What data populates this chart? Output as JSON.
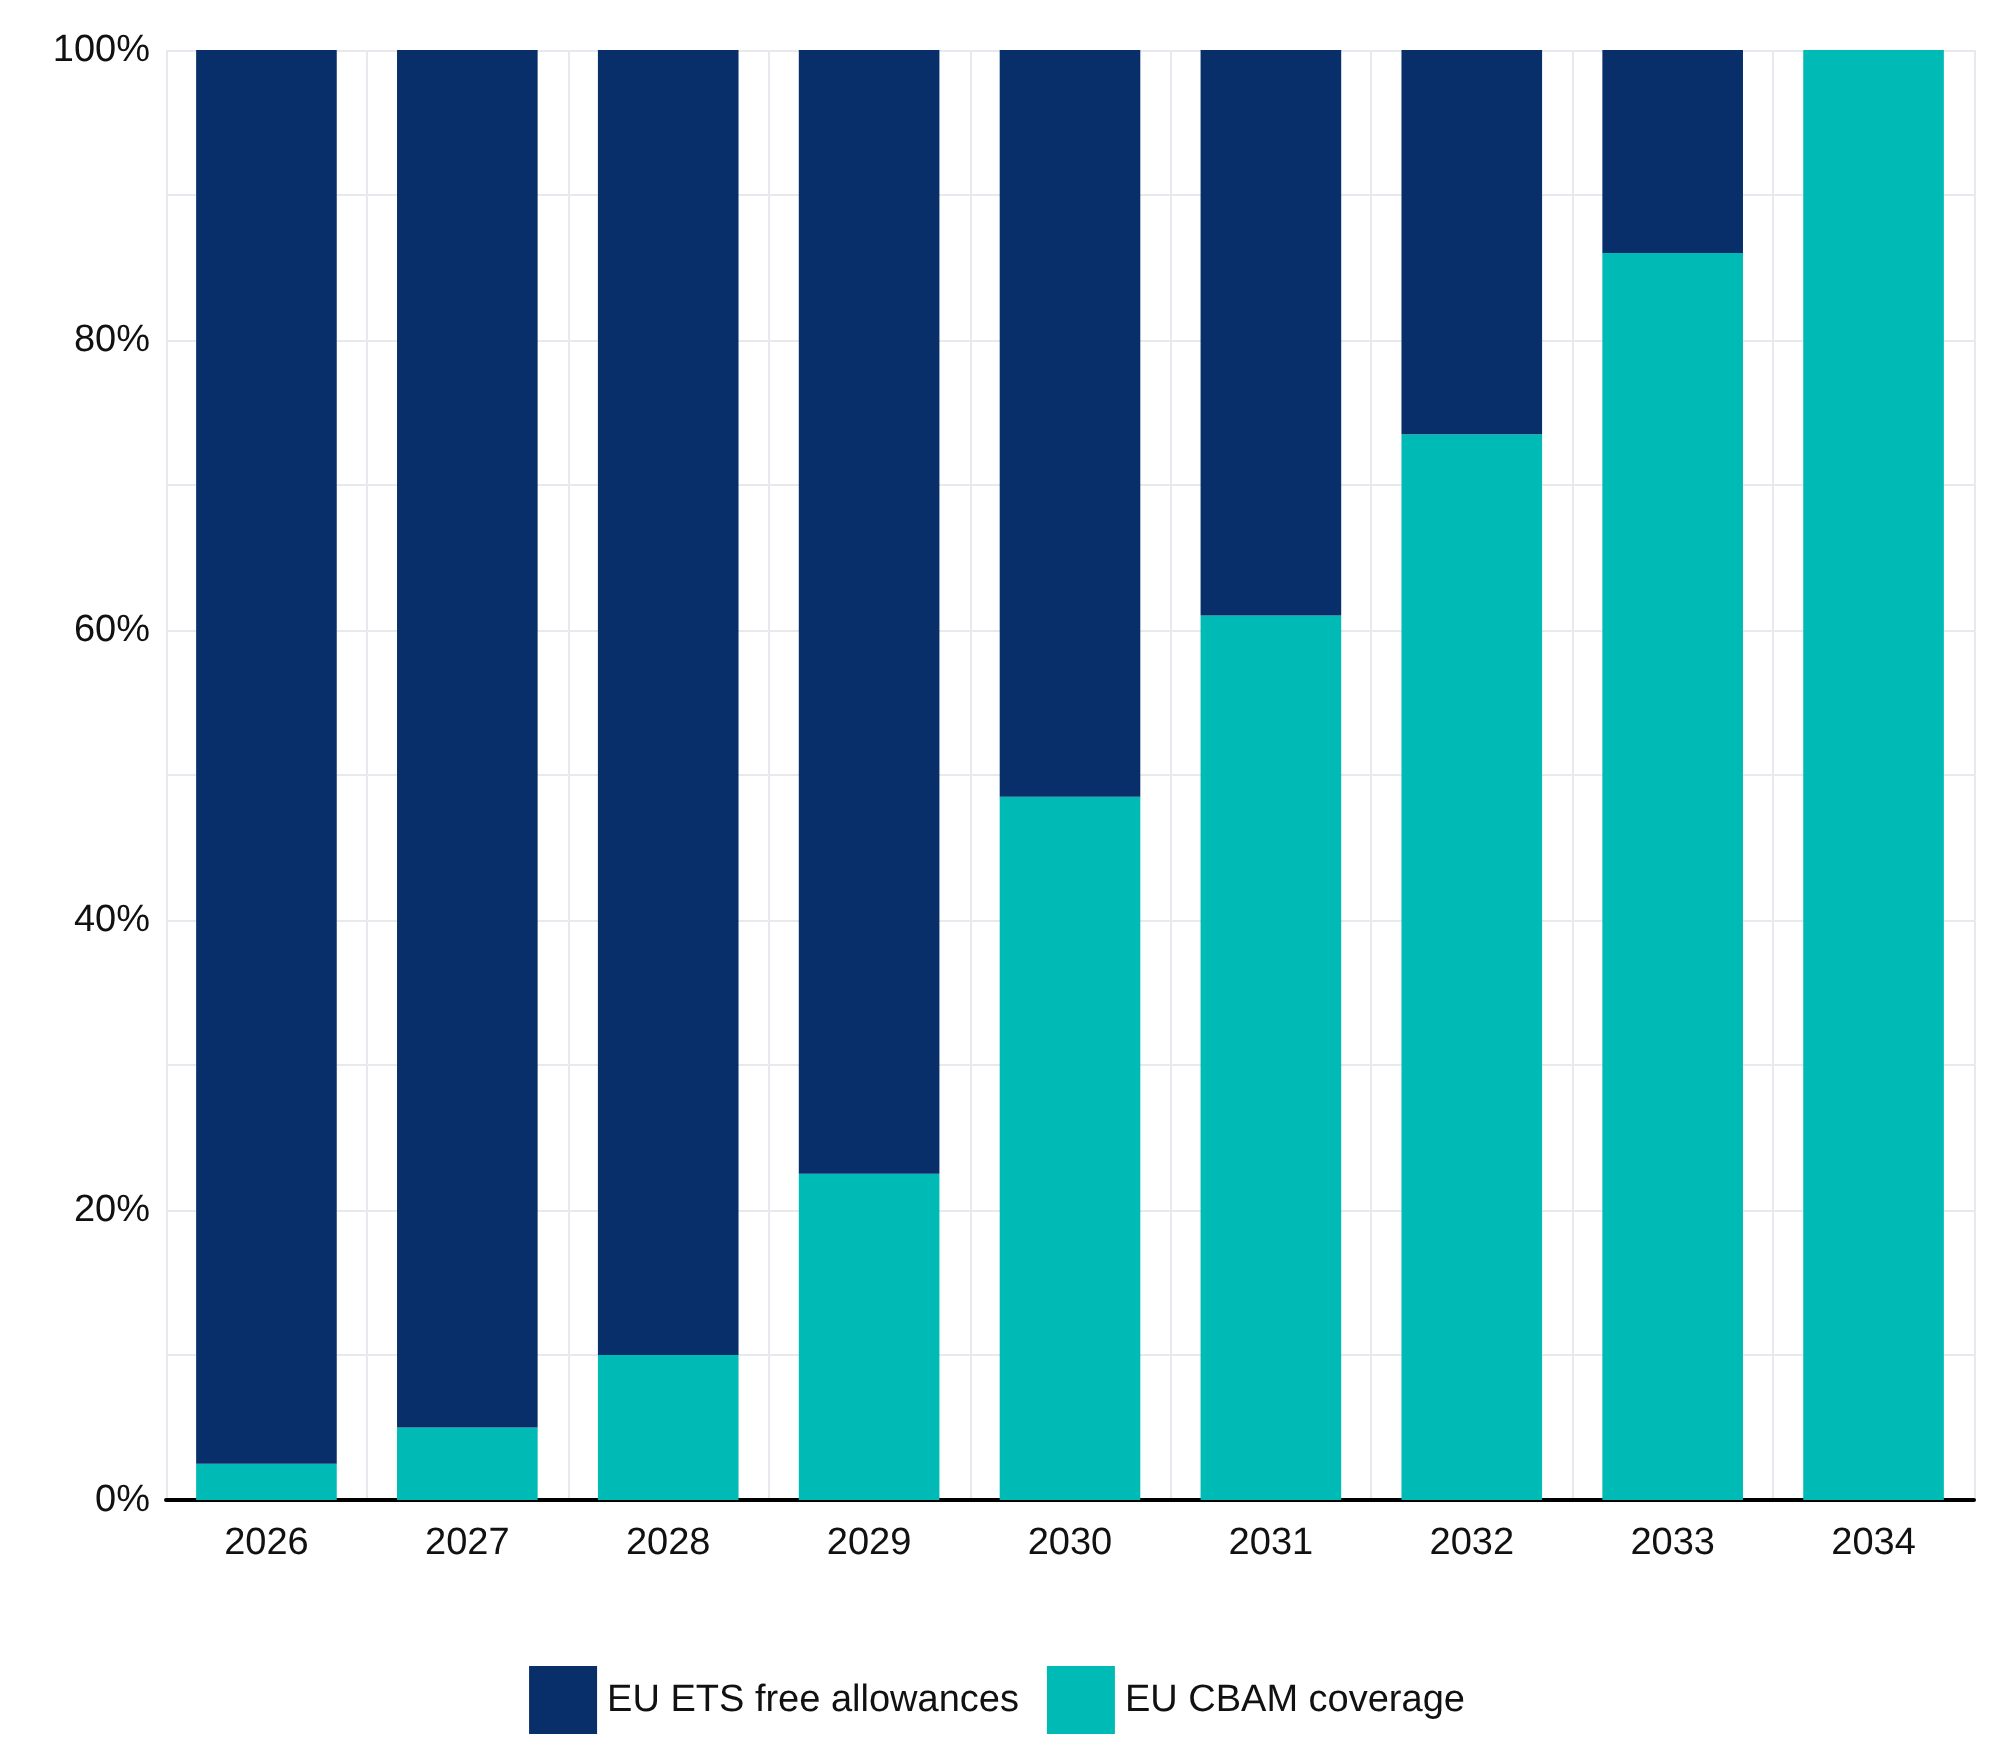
{
  "chart_data": {
    "type": "bar",
    "stacked": true,
    "categories": [
      "2026",
      "2027",
      "2028",
      "2029",
      "2030",
      "2031",
      "2032",
      "2033",
      "2034"
    ],
    "series": [
      {
        "name": "EU CBAM coverage",
        "color": "#00bab5",
        "values": [
          2.5,
          5,
          10,
          22.5,
          48.5,
          61,
          73.5,
          86,
          100
        ]
      },
      {
        "name": "EU ETS free allowances",
        "color": "#082f6a",
        "values": [
          97.5,
          95,
          90,
          77.5,
          51.5,
          39,
          26.5,
          14,
          0
        ]
      }
    ],
    "ylim": [
      0,
      100
    ],
    "yticks": [
      {
        "value": 0,
        "label": "0%"
      },
      {
        "value": 10,
        "label": null
      },
      {
        "value": 20,
        "label": "20%"
      },
      {
        "value": 30,
        "label": null
      },
      {
        "value": 40,
        "label": "40%"
      },
      {
        "value": 50,
        "label": null
      },
      {
        "value": 60,
        "label": "60%"
      },
      {
        "value": 70,
        "label": null
      },
      {
        "value": 80,
        "label": "80%"
      },
      {
        "value": 90,
        "label": null
      },
      {
        "value": 100,
        "label": "100%"
      }
    ],
    "grid": true,
    "legend": "bottom"
  }
}
